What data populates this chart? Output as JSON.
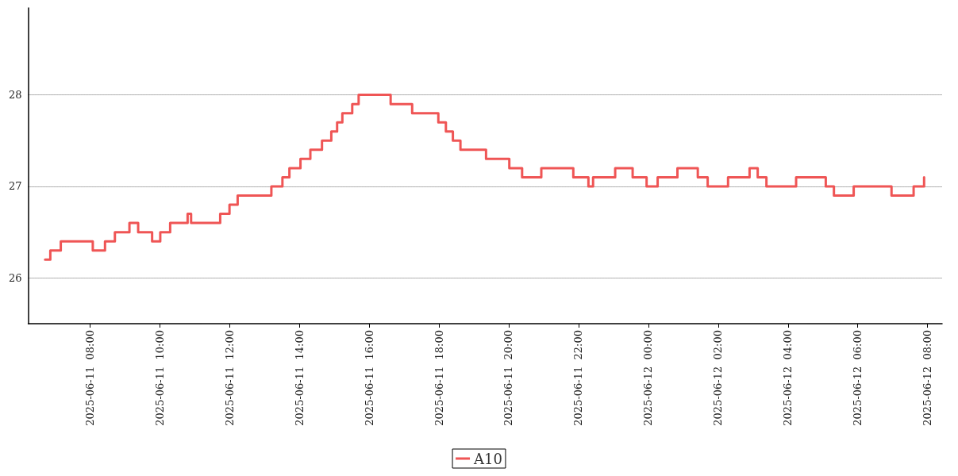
{
  "chart_data": {
    "type": "step",
    "x": [
      "2025-06-11T06:43",
      "2025-06-11T06:52",
      "2025-06-11T07:10",
      "2025-06-11T08:05",
      "2025-06-11T08:26",
      "2025-06-11T08:43",
      "2025-06-11T09:08",
      "2025-06-11T09:23",
      "2025-06-11T09:47",
      "2025-06-11T10:01",
      "2025-06-11T10:18",
      "2025-06-11T10:48",
      "2025-06-11T10:54",
      "2025-06-11T11:44",
      "2025-06-11T12:00",
      "2025-06-11T12:14",
      "2025-06-11T13:12",
      "2025-06-11T13:31",
      "2025-06-11T13:43",
      "2025-06-11T14:02",
      "2025-06-11T14:19",
      "2025-06-11T14:39",
      "2025-06-11T14:55",
      "2025-06-11T15:05",
      "2025-06-11T15:14",
      "2025-06-11T15:31",
      "2025-06-11T15:42",
      "2025-06-11T16:37",
      "2025-06-11T17:14",
      "2025-06-11T17:59",
      "2025-06-11T18:12",
      "2025-06-11T18:24",
      "2025-06-11T18:37",
      "2025-06-11T19:21",
      "2025-06-11T20:01",
      "2025-06-11T20:23",
      "2025-06-11T20:56",
      "2025-06-11T21:51",
      "2025-06-11T22:17",
      "2025-06-11T22:25",
      "2025-06-11T23:03",
      "2025-06-11T23:33",
      "2025-06-11T23:57",
      "2025-06-12T00:16",
      "2025-06-12T00:50",
      "2025-06-12T01:25",
      "2025-06-12T01:42",
      "2025-06-12T02:17",
      "2025-06-12T02:54",
      "2025-06-12T03:08",
      "2025-06-12T03:23",
      "2025-06-12T04:14",
      "2025-06-12T05:05",
      "2025-06-12T05:19",
      "2025-06-12T05:53",
      "2025-06-12T06:58",
      "2025-06-12T07:36",
      "2025-06-12T07:54"
    ],
    "series": [
      {
        "name": "A10",
        "color": "#ef5555",
        "values": [
          26.2,
          26.3,
          26.4,
          26.3,
          26.4,
          26.5,
          26.6,
          26.5,
          26.4,
          26.5,
          26.6,
          26.7,
          26.6,
          26.7,
          26.8,
          26.9,
          27.0,
          27.1,
          27.2,
          27.3,
          27.4,
          27.5,
          27.6,
          27.7,
          27.8,
          27.9,
          28.0,
          27.9,
          27.8,
          27.7,
          27.6,
          27.5,
          27.4,
          27.3,
          27.2,
          27.1,
          27.2,
          27.1,
          27.0,
          27.1,
          27.2,
          27.1,
          27.0,
          27.1,
          27.2,
          27.1,
          27.0,
          27.1,
          27.2,
          27.1,
          27.0,
          27.1,
          27.0,
          26.9,
          27.0,
          26.9,
          27.0,
          27.1
        ]
      }
    ],
    "xlim": [
      "2025-06-11T06:14",
      "2025-06-12T08:25"
    ],
    "xticks": [
      {
        "value": "2025-06-11T08:00",
        "label": "2025-06-11  08:00"
      },
      {
        "value": "2025-06-11T10:00",
        "label": "2025-06-11  10:00"
      },
      {
        "value": "2025-06-11T12:00",
        "label": "2025-06-11  12:00"
      },
      {
        "value": "2025-06-11T14:00",
        "label": "2025-06-11  14:00"
      },
      {
        "value": "2025-06-11T16:00",
        "label": "2025-06-11  16:00"
      },
      {
        "value": "2025-06-11T18:00",
        "label": "2025-06-11  18:00"
      },
      {
        "value": "2025-06-11T20:00",
        "label": "2025-06-11  20:00"
      },
      {
        "value": "2025-06-11T22:00",
        "label": "2025-06-11  22:00"
      },
      {
        "value": "2025-06-12T00:00",
        "label": "2025-06-12  00:00"
      },
      {
        "value": "2025-06-12T02:00",
        "label": "2025-06-12  02:00"
      },
      {
        "value": "2025-06-12T04:00",
        "label": "2025-06-12  04:00"
      },
      {
        "value": "2025-06-12T06:00",
        "label": "2025-06-12  06:00"
      },
      {
        "value": "2025-06-12T08:00",
        "label": "2025-06-12  08:00"
      }
    ],
    "ylim": [
      25.5,
      28.95
    ],
    "yticks": [
      26,
      27,
      28
    ],
    "grid": "y",
    "legend": "bottom",
    "line_style": "solid",
    "marker": "none"
  }
}
